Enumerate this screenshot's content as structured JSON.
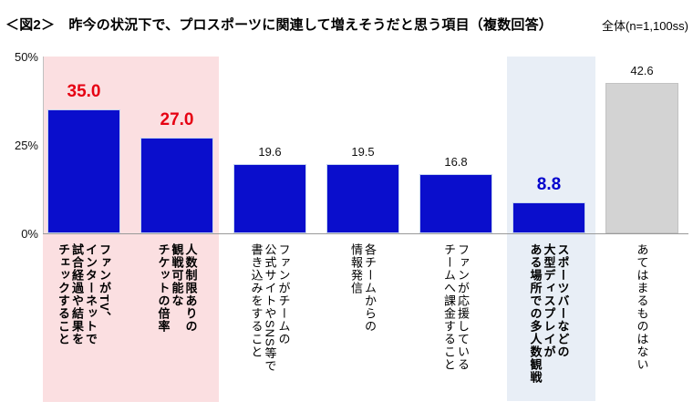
{
  "header": {
    "title": "＜図2＞　昨今の状況下で、プロスポーツに関連して増えそうだと思う項目（複数回答）",
    "sample": "全体(n=1,100ss)"
  },
  "chart_data": {
    "type": "bar",
    "title": "昨今の状況下で、プロスポーツに関連して増えそうだと思う項目（複数回答）",
    "figure_label": "＜図2＞",
    "sample_note": "全体(n=1,100ss)",
    "ylim": [
      0,
      50
    ],
    "yticks": [
      0,
      25,
      50
    ],
    "ytick_labels": [
      "0%",
      "25%",
      "50%"
    ],
    "grid": false,
    "legend": false,
    "categories": [
      "ファンがTV、\nインターネットで\n試合経過や結果を\nチェックすること",
      "人数制限ありの\n観戦可能な\nチケットの倍率",
      "ファンがチームの\n公式サイトやSNS等で\n書き込みをすること",
      "各チームからの\n情報発信",
      "ファンが応援している\nチームへ課金すること",
      "スポーツバーなどの\n大型ディスプレイが\nある場所での多人数観戦",
      "あてはまるものはない"
    ],
    "values": [
      35.0,
      27.0,
      19.6,
      19.5,
      16.8,
      8.8,
      42.6
    ],
    "bars": [
      {
        "category": "ファンがTV、\nインターネットで\n試合経過や結果を\nチェックすること",
        "value": 35.0,
        "value_label": "35.0",
        "value_style": "red-bold",
        "bar_color": "blue",
        "label_bold": true,
        "band": "pink"
      },
      {
        "category": "人数制限ありの\n観戦可能な\nチケットの倍率",
        "value": 27.0,
        "value_label": "27.0",
        "value_style": "red-bold",
        "bar_color": "blue",
        "label_bold": true,
        "band": "pink"
      },
      {
        "category": "ファンがチームの\n公式サイトやSNS等で\n書き込みをすること",
        "value": 19.6,
        "value_label": "19.6",
        "value_style": "none",
        "bar_color": "blue",
        "label_bold": false,
        "band": null
      },
      {
        "category": "各チームからの\n情報発信",
        "value": 19.5,
        "value_label": "19.5",
        "value_style": "none",
        "bar_color": "blue",
        "label_bold": false,
        "band": null
      },
      {
        "category": "ファンが応援している\nチームへ課金すること",
        "value": 16.8,
        "value_label": "16.8",
        "value_style": "none",
        "bar_color": "blue",
        "label_bold": false,
        "band": null
      },
      {
        "category": "スポーツバーなどの\n大型ディスプレイが\nある場所での多人数観戦",
        "value": 8.8,
        "value_label": "8.8",
        "value_style": "blue-bold",
        "bar_color": "blue",
        "label_bold": true,
        "band": "light-blue"
      },
      {
        "category": "あてはまるものはない",
        "value": 42.6,
        "value_label": "42.6",
        "value_style": "none",
        "bar_color": "gray",
        "label_bold": false,
        "band": null
      }
    ],
    "colors": {
      "bar_blue": "#0a0ecc",
      "bar_gray": "#d3d3d3",
      "band_pink": "#fbdfe1",
      "band_light_blue": "#e8eef6",
      "value_red": "#e60012",
      "value_blue": "#0000cd"
    }
  }
}
